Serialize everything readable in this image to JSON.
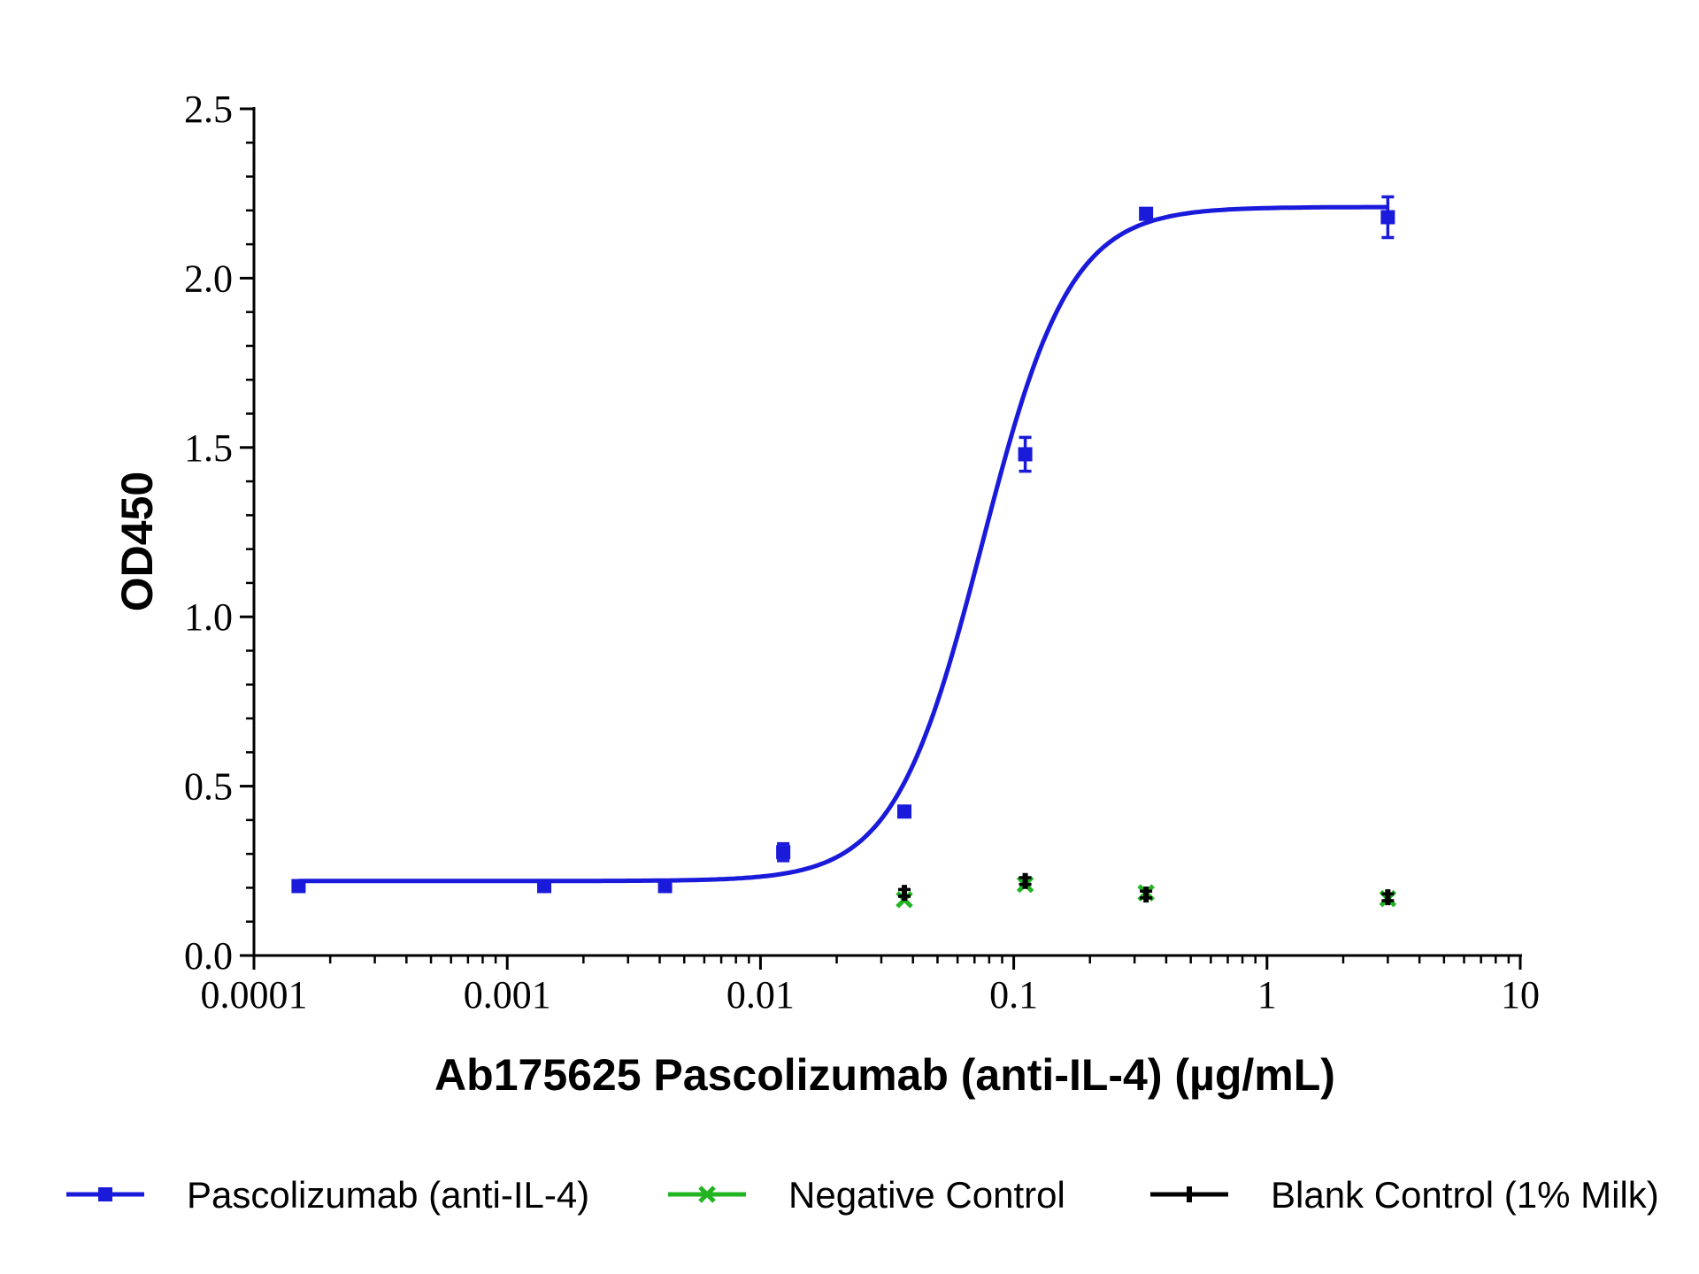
{
  "chart_data": {
    "type": "scatter",
    "title": "",
    "xlabel": "Ab175625 Pascolizumab (anti-IL-4) (µg/mL)",
    "ylabel": "OD450",
    "x_scale": "log",
    "xlim": [
      0.0001,
      10
    ],
    "ylim": [
      0.0,
      2.5
    ],
    "x_ticks": [
      {
        "value": 0.0001,
        "label": "0.0001"
      },
      {
        "value": 0.001,
        "label": "0.001"
      },
      {
        "value": 0.01,
        "label": "0.01"
      },
      {
        "value": 0.1,
        "label": "0.1"
      },
      {
        "value": 1,
        "label": "1"
      },
      {
        "value": 10,
        "label": "10"
      }
    ],
    "y_ticks": [
      {
        "value": 0.0,
        "label": "0.0"
      },
      {
        "value": 0.5,
        "label": "0.5"
      },
      {
        "value": 1.0,
        "label": "1.0"
      },
      {
        "value": 1.5,
        "label": "1.5"
      },
      {
        "value": 2.0,
        "label": "2.0"
      },
      {
        "value": 2.5,
        "label": "2.5"
      }
    ],
    "grid": false,
    "legend_position": "bottom",
    "series": [
      {
        "name": "Pascolizumab (anti-IL-4)",
        "color": "#1a1adb",
        "marker": "square",
        "fit": "four-parameter logistic",
        "fit_params": {
          "bottom": 0.22,
          "top": 2.21,
          "ec50": 0.075,
          "hill": 2.5
        },
        "points": [
          {
            "x": 0.00015,
            "y": 0.205,
            "err": 0.01
          },
          {
            "x": 0.0014,
            "y": 0.205,
            "err": 0.01
          },
          {
            "x": 0.0042,
            "y": 0.205,
            "err": 0.01
          },
          {
            "x": 0.0123,
            "y": 0.305,
            "err": 0.025
          },
          {
            "x": 0.037,
            "y": 0.425,
            "err": 0.015
          },
          {
            "x": 0.111,
            "y": 1.48,
            "err": 0.05
          },
          {
            "x": 0.333,
            "y": 2.19,
            "err": 0.015
          },
          {
            "x": 3.0,
            "y": 2.18,
            "err": 0.06
          }
        ]
      },
      {
        "name": "Negative Control",
        "color": "#22b422",
        "marker": "x",
        "points": [
          {
            "x": 0.037,
            "y": 0.165
          },
          {
            "x": 0.111,
            "y": 0.21
          },
          {
            "x": 0.333,
            "y": 0.185
          },
          {
            "x": 3.0,
            "y": 0.168
          }
        ]
      },
      {
        "name": "Blank Control (1% Milk)",
        "color": "#000000",
        "marker": "dash",
        "points": [
          {
            "x": 0.037,
            "y": 0.185,
            "err": 0.01
          },
          {
            "x": 0.111,
            "y": 0.22,
            "err": 0.01
          },
          {
            "x": 0.333,
            "y": 0.18,
            "err": 0.01
          },
          {
            "x": 3.0,
            "y": 0.172,
            "err": 0.01
          }
        ]
      }
    ]
  }
}
